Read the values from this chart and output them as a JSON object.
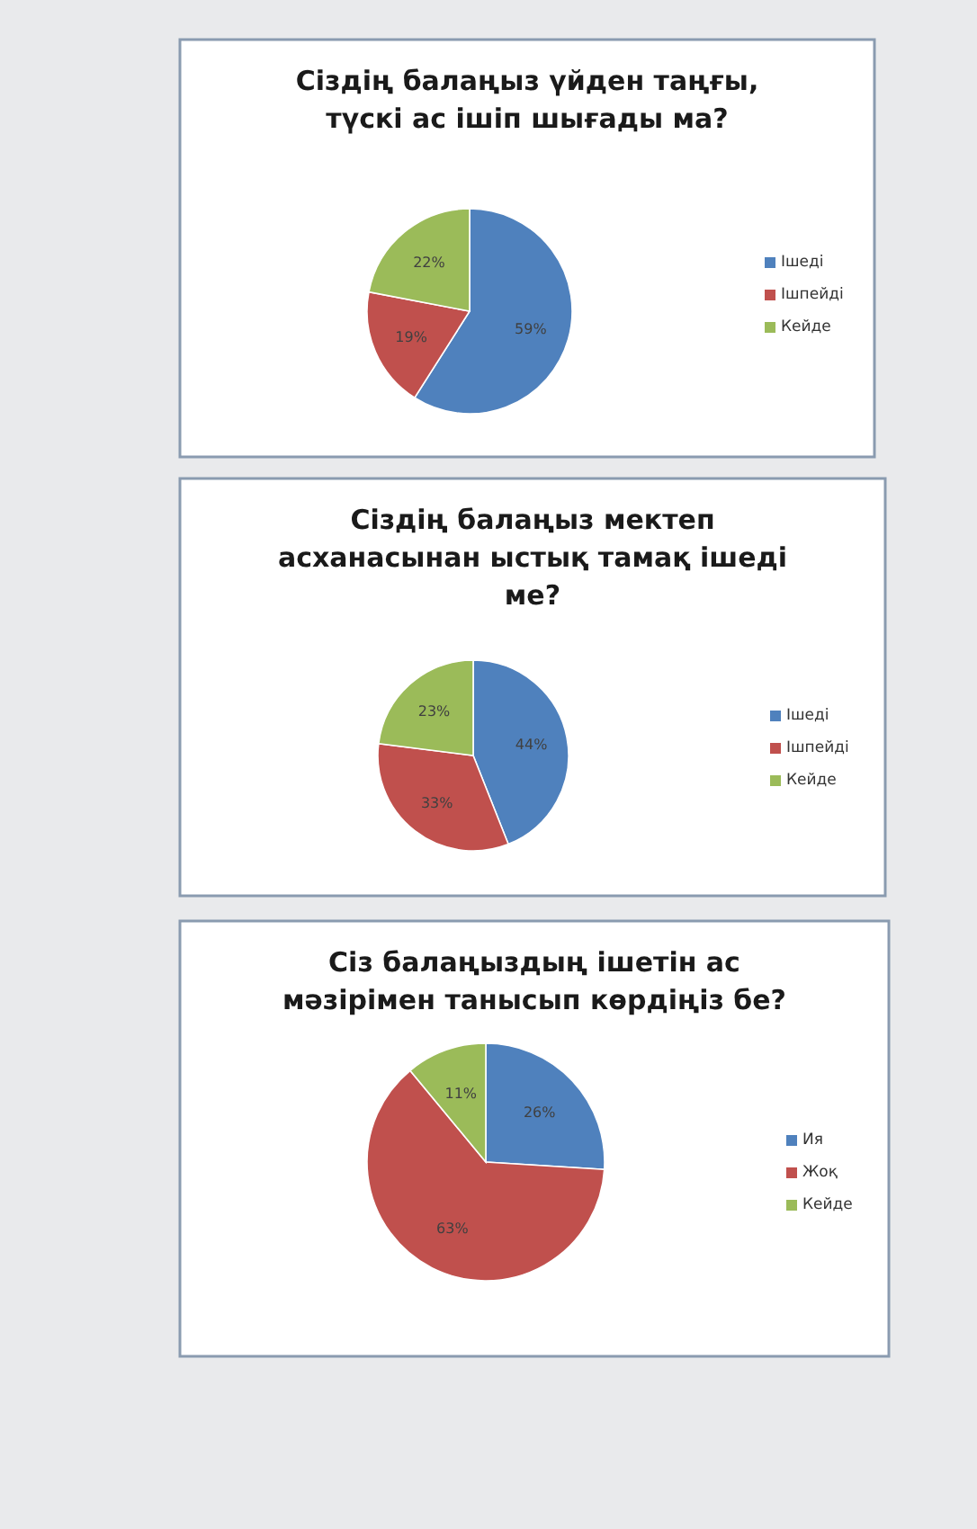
{
  "chart_data": [
    {
      "type": "pie",
      "title": "Сіздің балаңыз үйден таңғы, түскі ас ішіп шығады ма?",
      "categories": [
        "Ішеді",
        "Ішпейді",
        "Кейде"
      ],
      "values": [
        59,
        19,
        22
      ],
      "value_labels": [
        "59%",
        "19%",
        "22%"
      ],
      "colors": [
        "#4f81bd",
        "#c0504d",
        "#9bbb59"
      ],
      "legend": "right"
    },
    {
      "type": "pie",
      "title": "Сіздің балаңыз мектеп асханасынан ыстық тамақ ішеді ме?",
      "categories": [
        "Ішеді",
        "Ішпейді",
        "Кейде"
      ],
      "values": [
        44,
        33,
        23
      ],
      "value_labels": [
        "44%",
        "33%",
        "23%"
      ],
      "colors": [
        "#4f81bd",
        "#c0504d",
        "#9bbb59"
      ],
      "legend": "right"
    },
    {
      "type": "pie",
      "title": "Сіз балаңыздың ішетін ас мәзірімен танысып көрдіңіз бе?",
      "categories": [
        "Ия",
        "Жоқ",
        "Кейде"
      ],
      "values": [
        26,
        63,
        11
      ],
      "value_labels": [
        "26%",
        "63%",
        "11%"
      ],
      "colors": [
        "#4f81bd",
        "#c0504d",
        "#9bbb59"
      ],
      "legend": "right"
    }
  ]
}
